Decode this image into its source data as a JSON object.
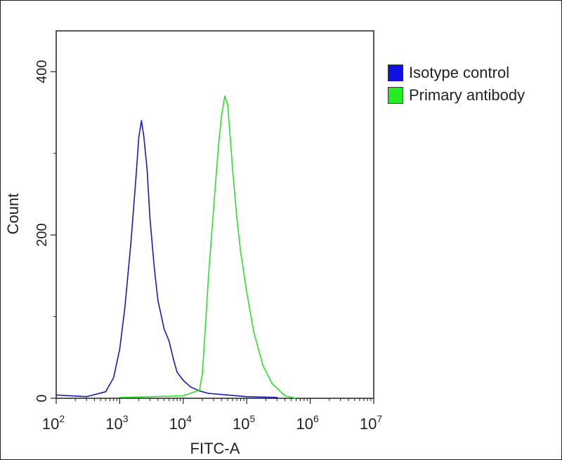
{
  "chart_data": {
    "type": "line",
    "xlabel": "FITC-A",
    "ylabel": "Count",
    "xscale": "log",
    "xlim": [
      100,
      10000000
    ],
    "ylim": [
      0,
      450
    ],
    "x_ticks": [
      {
        "base": "10",
        "exp": "2"
      },
      {
        "base": "10",
        "exp": "3"
      },
      {
        "base": "10",
        "exp": "4"
      },
      {
        "base": "10",
        "exp": "5"
      },
      {
        "base": "10",
        "exp": "6"
      },
      {
        "base": "10",
        "exp": "7"
      }
    ],
    "y_ticks": [
      0,
      200,
      400
    ],
    "legend_position": "right",
    "series": [
      {
        "name": "Isotype control",
        "color": "#1a1ab8",
        "x": [
          100,
          300,
          600,
          800,
          1000,
          1200,
          1500,
          1800,
          2000,
          2200,
          2400,
          2700,
          3000,
          3500,
          4000,
          5000,
          6000,
          7000,
          8000,
          10000,
          13000,
          18000,
          25000,
          50000,
          100000,
          300000
        ],
        "y": [
          4,
          2,
          8,
          25,
          60,
          110,
          190,
          270,
          320,
          340,
          320,
          280,
          220,
          160,
          120,
          85,
          70,
          48,
          32,
          22,
          14,
          9,
          6,
          4,
          2,
          1
        ]
      },
      {
        "name": "Primary antibody",
        "color": "#2ee02e",
        "x": [
          1000,
          10000,
          18000,
          20000,
          22000,
          25000,
          28000,
          32000,
          36000,
          40000,
          45000,
          50000,
          55000,
          60000,
          70000,
          80000,
          100000,
          130000,
          180000,
          250000,
          400000,
          600000
        ],
        "y": [
          1,
          3,
          10,
          30,
          80,
          150,
          200,
          260,
          310,
          345,
          370,
          360,
          320,
          280,
          220,
          180,
          130,
          80,
          40,
          18,
          3,
          0
        ]
      }
    ]
  }
}
